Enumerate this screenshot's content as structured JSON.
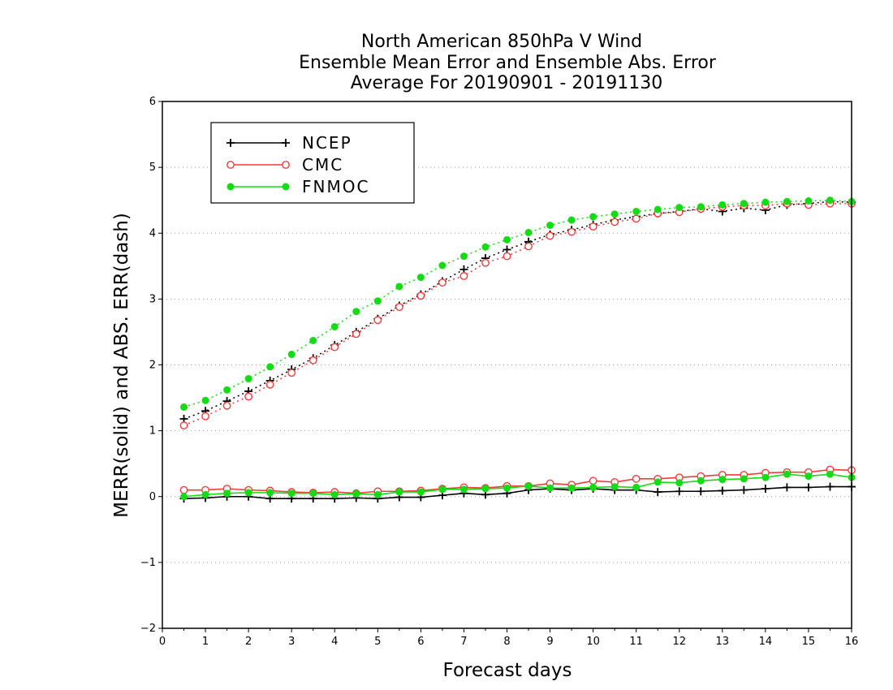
{
  "chart_data": {
    "type": "line",
    "title_lines": [
      "North American 850hPa V Wind",
      "Ensemble Mean Error and Ensemble Abs. Error",
      "Average For 20190901 - 20191130"
    ],
    "xlabel": "Forecast days",
    "ylabel": "MERR(solid) and ABS. ERR(dash)",
    "xlim": [
      0,
      16
    ],
    "ylim": [
      -2,
      6
    ],
    "x_ticks": [
      "0",
      "1",
      "2",
      "3",
      "4",
      "5",
      "6",
      "7",
      "8",
      "9",
      "10",
      "11",
      "12",
      "13",
      "14",
      "15",
      "16"
    ],
    "y_ticks": [
      "-2",
      "-1",
      "0",
      "1",
      "2",
      "3",
      "4",
      "5",
      "6"
    ],
    "grid": "horizontal dotted",
    "legend_position": "top-left",
    "x": [
      0.5,
      1,
      1.5,
      2,
      2.5,
      3,
      3.5,
      4,
      4.5,
      5,
      5.5,
      6,
      6.5,
      7,
      7.5,
      8,
      8.5,
      9,
      9.5,
      10,
      10.5,
      11,
      11.5,
      12,
      12.5,
      13,
      13.5,
      14,
      14.5,
      15,
      15.5,
      16
    ],
    "series": [
      {
        "name": "NCEP",
        "color": "#000000",
        "marker": "plus",
        "merr": [
          -0.03,
          -0.02,
          0.0,
          0.0,
          -0.03,
          -0.03,
          -0.03,
          -0.03,
          -0.02,
          -0.03,
          -0.01,
          -0.01,
          0.02,
          0.05,
          0.03,
          0.05,
          0.1,
          0.12,
          0.1,
          0.12,
          0.1,
          0.1,
          0.07,
          0.08,
          0.08,
          0.09,
          0.1,
          0.12,
          0.14,
          0.14,
          0.15,
          0.15
        ],
        "abs_err": [
          1.18,
          1.3,
          1.45,
          1.6,
          1.76,
          1.93,
          2.1,
          2.3,
          2.5,
          2.7,
          2.9,
          3.07,
          3.27,
          3.45,
          3.62,
          3.75,
          3.87,
          3.98,
          4.05,
          4.13,
          4.2,
          4.25,
          4.3,
          4.33,
          4.37,
          4.33,
          4.38,
          4.35,
          4.43,
          4.45,
          4.48,
          4.47
        ]
      },
      {
        "name": "CMC",
        "color": "#f03c3c",
        "marker": "circle-open",
        "merr": [
          0.1,
          0.1,
          0.12,
          0.1,
          0.09,
          0.07,
          0.06,
          0.07,
          0.05,
          0.08,
          0.08,
          0.09,
          0.12,
          0.14,
          0.13,
          0.16,
          0.16,
          0.2,
          0.18,
          0.24,
          0.22,
          0.27,
          0.27,
          0.29,
          0.31,
          0.33,
          0.33,
          0.36,
          0.37,
          0.37,
          0.41,
          0.4
        ],
        "abs_err": [
          1.08,
          1.22,
          1.38,
          1.52,
          1.7,
          1.88,
          2.07,
          2.27,
          2.47,
          2.68,
          2.88,
          3.05,
          3.25,
          3.35,
          3.55,
          3.65,
          3.8,
          3.96,
          4.02,
          4.1,
          4.17,
          4.22,
          4.3,
          4.32,
          4.37,
          4.4,
          4.42,
          4.42,
          4.45,
          4.43,
          4.45,
          4.45
        ]
      },
      {
        "name": "FNMOC",
        "color": "#14dc14",
        "marker": "circle-filled",
        "merr": [
          0.0,
          0.03,
          0.05,
          0.06,
          0.06,
          0.05,
          0.05,
          0.03,
          0.04,
          0.03,
          0.07,
          0.07,
          0.11,
          0.11,
          0.12,
          0.13,
          0.16,
          0.13,
          0.13,
          0.14,
          0.15,
          0.14,
          0.22,
          0.21,
          0.24,
          0.26,
          0.27,
          0.29,
          0.34,
          0.31,
          0.34,
          0.29
        ],
        "abs_err": [
          1.36,
          1.46,
          1.62,
          1.79,
          1.97,
          2.16,
          2.37,
          2.58,
          2.81,
          2.97,
          3.19,
          3.33,
          3.51,
          3.65,
          3.79,
          3.9,
          4.01,
          4.12,
          4.2,
          4.25,
          4.29,
          4.33,
          4.36,
          4.39,
          4.4,
          4.43,
          4.45,
          4.47,
          4.48,
          4.49,
          4.5,
          4.48
        ]
      }
    ]
  }
}
